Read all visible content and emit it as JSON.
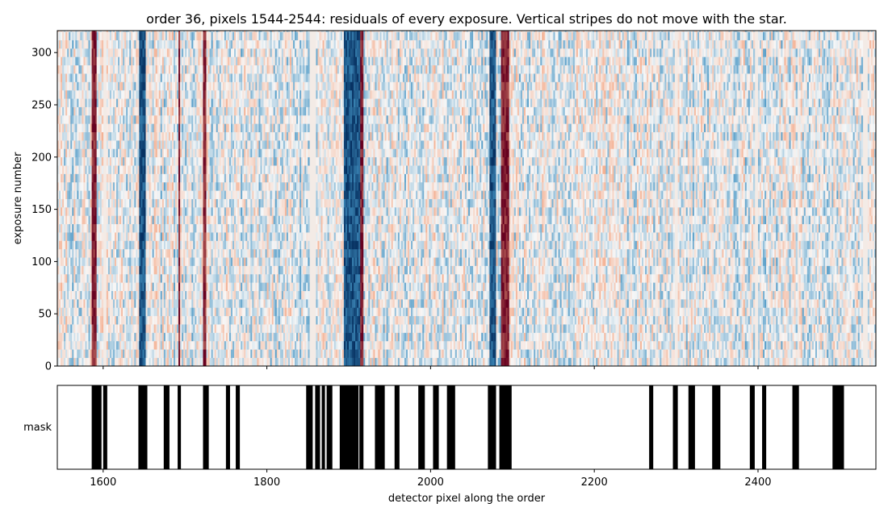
{
  "chart_data": [
    {
      "type": "heatmap",
      "title": "order 36, pixels 1544-2544: residuals of every exposure. Vertical stripes do not move with the star.",
      "xlabel": "",
      "ylabel": "exposure number",
      "xlim": [
        1544,
        2544
      ],
      "ylim": [
        0,
        321
      ],
      "x_ticks": [
        1600,
        1800,
        2000,
        2200,
        2400
      ],
      "x_tick_labels_shown": false,
      "y_ticks": [
        0,
        50,
        100,
        150,
        200,
        250,
        300
      ],
      "colormap": "RdBu_r",
      "colors": {
        "neg": "#053061",
        "mid": "#f7f7f7",
        "pos": "#67001f"
      },
      "masked_columns": [
        [
          1600,
          1603
        ],
        [
          1851,
          1858
        ],
        [
          2273,
          2275
        ],
        [
          2298,
          2300
        ],
        [
          2396,
          2398
        ],
        [
          2447,
          2449
        ],
        [
          2528,
          2532
        ]
      ],
      "strong_positive_stripes": [
        [
          1586,
          1591
        ],
        [
          1691,
          1693
        ],
        [
          1722,
          1724
        ],
        [
          1913,
          1916
        ],
        [
          2086,
          2094
        ]
      ],
      "strong_negative_stripes": [
        [
          1643,
          1651
        ],
        [
          1893,
          1912
        ],
        [
          2072,
          2079
        ]
      ]
    },
    {
      "type": "heatmap",
      "title": "",
      "xlabel": "detector pixel along the order",
      "ylabel": "mask",
      "xlim": [
        1544,
        2544
      ],
      "x_ticks": [
        1600,
        1800,
        2000,
        2200,
        2400
      ],
      "masked_ranges": [
        [
          1586,
          1598
        ],
        [
          1600,
          1605
        ],
        [
          1643,
          1654
        ],
        [
          1674,
          1681
        ],
        [
          1691,
          1695
        ],
        [
          1722,
          1729
        ],
        [
          1750,
          1755
        ],
        [
          1762,
          1767
        ],
        [
          1848,
          1856
        ],
        [
          1859,
          1865
        ],
        [
          1867,
          1871
        ],
        [
          1873,
          1880
        ],
        [
          1889,
          1912
        ],
        [
          1913,
          1918
        ],
        [
          1932,
          1944
        ],
        [
          1956,
          1962
        ],
        [
          1985,
          1993
        ],
        [
          2003,
          2010
        ],
        [
          2020,
          2030
        ],
        [
          2070,
          2080
        ],
        [
          2084,
          2099
        ],
        [
          2267,
          2272
        ],
        [
          2296,
          2302
        ],
        [
          2315,
          2323
        ],
        [
          2344,
          2354
        ],
        [
          2390,
          2396
        ],
        [
          2405,
          2410
        ],
        [
          2442,
          2450
        ],
        [
          2491,
          2505
        ]
      ],
      "mask_color": "#000000"
    }
  ]
}
